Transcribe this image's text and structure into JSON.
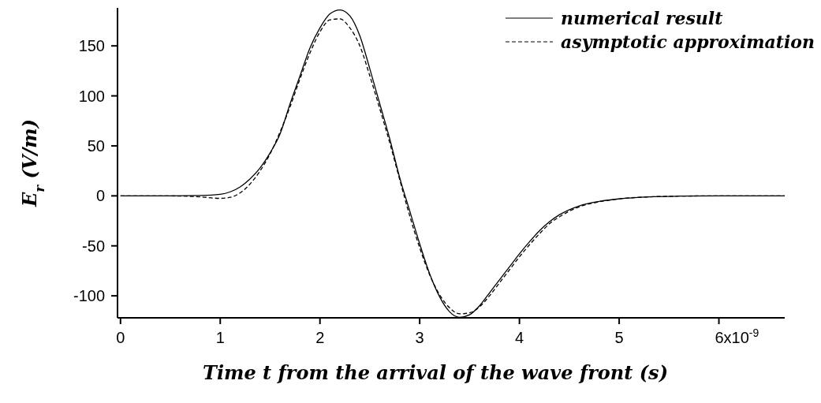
{
  "chart_data": {
    "type": "line",
    "xlabel": "Time t from the arrival of the wave front (s)",
    "ylabel": "E$_{r}$   (V/m)",
    "x": [
      0,
      0.5,
      0.8,
      1.0,
      1.1,
      1.2,
      1.3,
      1.4,
      1.5,
      1.6,
      1.7,
      1.8,
      1.9,
      2.0,
      2.1,
      2.2,
      2.3,
      2.4,
      2.5,
      2.6,
      2.7,
      2.8,
      2.9,
      3.0,
      3.1,
      3.2,
      3.3,
      3.4,
      3.5,
      3.6,
      3.7,
      3.8,
      3.9,
      4.0,
      4.1,
      4.2,
      4.3,
      4.4,
      4.6,
      4.8,
      5.0,
      5.3,
      5.6,
      6.0,
      6.66
    ],
    "series": [
      {
        "name": "numerical result",
        "color": "#000000",
        "line_style": "solid",
        "values": [
          0,
          0,
          0.3,
          1.5,
          4,
          9,
          17,
          28,
          43,
          62,
          92,
          120,
          148,
          168,
          182,
          186,
          180,
          160,
          127,
          92,
          57,
          18,
          -15,
          -48,
          -78,
          -101,
          -116,
          -121.5,
          -119,
          -110,
          -97,
          -84,
          -71,
          -58,
          -46,
          -35,
          -26,
          -19,
          -10,
          -5.5,
          -3,
          -1,
          -0.3,
          0,
          0
        ]
      },
      {
        "name": "asymptotic approximation",
        "color": "#000000",
        "line_style": "dashed",
        "values": [
          0,
          -0.1,
          -1,
          -2.5,
          -1.5,
          3,
          12,
          25,
          42,
          64,
          89,
          117,
          143,
          164,
          176,
          177,
          168,
          150,
          120,
          87,
          53,
          16,
          -20,
          -52,
          -79,
          -99,
          -112,
          -118,
          -117,
          -111,
          -100,
          -87,
          -74,
          -61,
          -49,
          -38,
          -28,
          -21,
          -11,
          -6,
          -3,
          -1,
          -0.3,
          0,
          0
        ]
      }
    ],
    "xlim": [
      -0.03,
      6.66
    ],
    "xticks": [
      0,
      1,
      2,
      3,
      4,
      5,
      6
    ],
    "ylim": [
      -122,
      188
    ],
    "yticks": [
      -100,
      -50,
      0,
      50,
      100,
      150
    ],
    "annotations": [
      "x10$^{-9}$"
    ],
    "grid": false,
    "legend": "top right",
    "marker": "none"
  }
}
